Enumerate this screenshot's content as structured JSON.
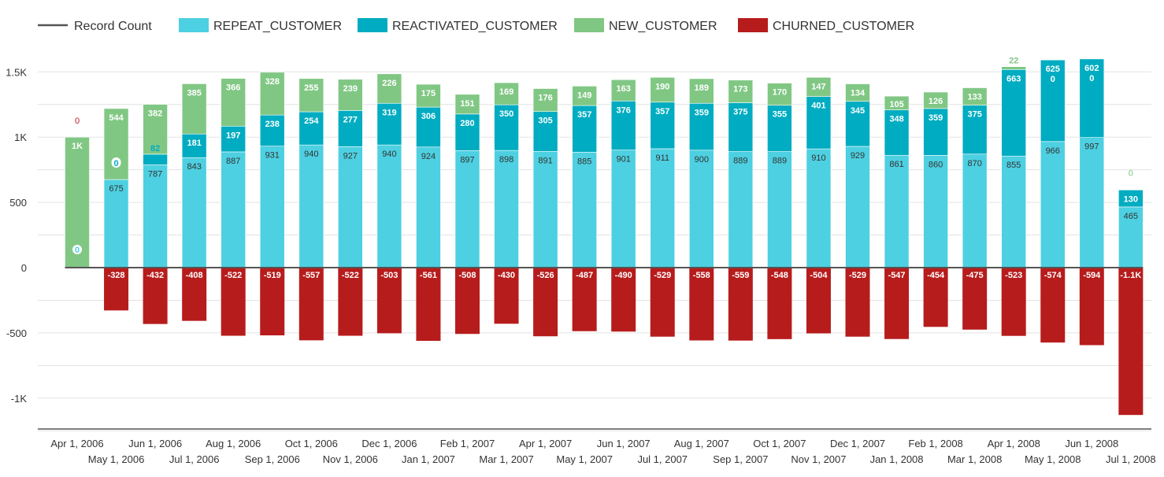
{
  "chart_data": {
    "type": "bar",
    "stacked": true,
    "legend_position": "top-left",
    "grid": true,
    "ylim": [
      -1250,
      1650
    ],
    "y_ticks": [
      {
        "value": 1500,
        "label": "1.5K"
      },
      {
        "value": 1000,
        "label": "1K"
      },
      {
        "value": 500,
        "label": "500"
      },
      {
        "value": 0,
        "label": "0"
      },
      {
        "value": -500,
        "label": "-500"
      },
      {
        "value": -1000,
        "label": "-1K"
      }
    ],
    "legend": [
      {
        "name": "Record Count",
        "kind": "line",
        "color": "#555555"
      },
      {
        "name": "REPEAT_CUSTOMER",
        "kind": "box",
        "color": "#4dd0e1"
      },
      {
        "name": "REACTIVATED_CUSTOMER",
        "kind": "box",
        "color": "#00acc1"
      },
      {
        "name": "NEW_CUSTOMER",
        "kind": "box",
        "color": "#81c784"
      },
      {
        "name": "CHURNED_CUSTOMER",
        "kind": "box",
        "color": "#b71c1c"
      }
    ],
    "categories": [
      "Apr 1, 2006",
      "May 1, 2006",
      "Jun 1, 2006",
      "Jul 1, 2006",
      "Aug 1, 2006",
      "Sep 1, 2006",
      "Oct 1, 2006",
      "Nov 1, 2006",
      "Dec 1, 2006",
      "Jan 1, 2007",
      "Feb 1, 2007",
      "Mar 1, 2007",
      "Apr 1, 2007",
      "May 1, 2007",
      "Jun 1, 2007",
      "Jul 1, 2007",
      "Aug 1, 2007",
      "Sep 1, 2007",
      "Oct 1, 2007",
      "Nov 1, 2007",
      "Dec 1, 2007",
      "Jan 1, 2008",
      "Feb 1, 2008",
      "Mar 1, 2008",
      "Apr 1, 2008",
      "May 1, 2008",
      "Jun 1, 2008",
      "Jul 1, 2008"
    ],
    "series": [
      {
        "name": "REPEAT_CUSTOMER",
        "color": "#4dd0e1",
        "values": [
          0,
          675,
          787,
          843,
          887,
          931,
          940,
          927,
          940,
          924,
          897,
          898,
          891,
          885,
          901,
          911,
          900,
          889,
          889,
          910,
          929,
          861,
          860,
          870,
          855,
          966,
          997,
          465
        ],
        "labels": [
          "0",
          "675",
          "787",
          "843",
          "887",
          "931",
          "940",
          "927",
          "940",
          "924",
          "897",
          "898",
          "891",
          "885",
          "901",
          "911",
          "900",
          "889",
          "889",
          "910",
          "929",
          "861",
          "860",
          "870",
          "855",
          "966",
          "997",
          "465"
        ]
      },
      {
        "name": "REACTIVATED_CUSTOMER",
        "color": "#00acc1",
        "values": [
          0,
          0,
          82,
          181,
          197,
          238,
          254,
          277,
          319,
          306,
          280,
          350,
          305,
          357,
          376,
          357,
          359,
          375,
          355,
          401,
          345,
          348,
          359,
          375,
          663,
          625,
          602,
          130
        ],
        "labels": [
          "0",
          "0",
          "82",
          "181",
          "197",
          "238",
          "254",
          "277",
          "319",
          "306",
          "280",
          "350",
          "305",
          "357",
          "376",
          "357",
          "359",
          "375",
          "355",
          "401",
          "345",
          "348",
          "359",
          "375",
          "663",
          "625",
          "602",
          "130"
        ]
      },
      {
        "name": "NEW_CUSTOMER",
        "color": "#81c784",
        "values": [
          1000,
          544,
          382,
          385,
          366,
          328,
          255,
          239,
          226,
          175,
          151,
          169,
          176,
          149,
          163,
          190,
          189,
          173,
          170,
          147,
          134,
          105,
          126,
          133,
          22,
          0,
          0,
          0
        ],
        "labels": [
          "1K",
          "544",
          "382",
          "385",
          "366",
          "328",
          "255",
          "239",
          "226",
          "175",
          "151",
          "169",
          "176",
          "149",
          "163",
          "190",
          "189",
          "173",
          "170",
          "147",
          "134",
          "105",
          "126",
          "133",
          "22",
          "0",
          "0",
          "0"
        ]
      },
      {
        "name": "CHURNED_CUSTOMER",
        "color": "#b71c1c",
        "values": [
          0,
          -328,
          -432,
          -408,
          -522,
          -519,
          -557,
          -522,
          -503,
          -561,
          -508,
          -430,
          -526,
          -487,
          -490,
          -529,
          -558,
          -559,
          -548,
          -504,
          -529,
          -547,
          -454,
          -475,
          -523,
          -574,
          -594,
          -1129
        ],
        "labels": [
          "0",
          "-328",
          "-432",
          "-408",
          "-522",
          "-519",
          "-557",
          "-522",
          "-503",
          "-561",
          "-508",
          "-430",
          "-526",
          "-487",
          "-490",
          "-529",
          "-558",
          "-559",
          "-548",
          "-504",
          "-529",
          "-547",
          "-454",
          "-475",
          "-523",
          "-574",
          "-594",
          "-1.1K"
        ]
      }
    ]
  }
}
